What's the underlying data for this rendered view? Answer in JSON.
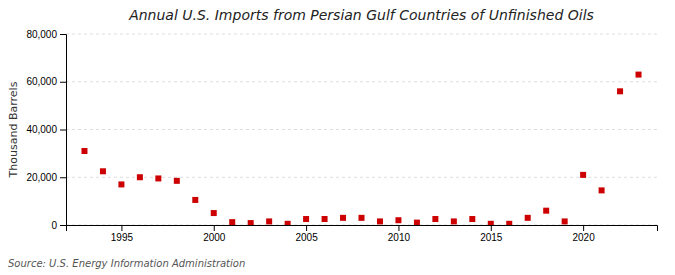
{
  "chart_data": {
    "type": "scatter",
    "title": "Annual U.S. Imports from Persian Gulf Countries of Unfinished Oils",
    "ylabel": "Thousand Barrels",
    "annotations": [
      "Source: U.S. Energy Information Administration"
    ],
    "x": [
      1993,
      1994,
      1995,
      1996,
      1997,
      1998,
      1999,
      2000,
      2001,
      2002,
      2003,
      2004,
      2005,
      2006,
      2007,
      2008,
      2009,
      2010,
      2011,
      2012,
      2013,
      2014,
      2015,
      2016,
      2017,
      2018,
      2019,
      2020,
      2021,
      2022,
      2023
    ],
    "values": [
      31000,
      22500,
      17000,
      20000,
      19500,
      18500,
      10500,
      5000,
      1200,
      800,
      1500,
      500,
      2500,
      2500,
      3000,
      3000,
      1500,
      2000,
      1000,
      2500,
      1500,
      2500,
      500,
      500,
      3000,
      6000,
      1500,
      21000,
      14500,
      56000,
      63000
    ],
    "color": "#cc0000",
    "marker": "square",
    "xlim": [
      1992,
      2024
    ],
    "xticks": [
      1995,
      2000,
      2005,
      2010,
      2015,
      2020
    ],
    "ylim": [
      0,
      80000
    ],
    "yticks": [
      0,
      {
        "value": 20000,
        "label": "20,000"
      },
      {
        "value": 40000,
        "label": "40,000"
      },
      {
        "value": 60000,
        "label": "60,000"
      },
      {
        "value": 80000,
        "label": "80,000"
      }
    ],
    "grid": "y"
  }
}
